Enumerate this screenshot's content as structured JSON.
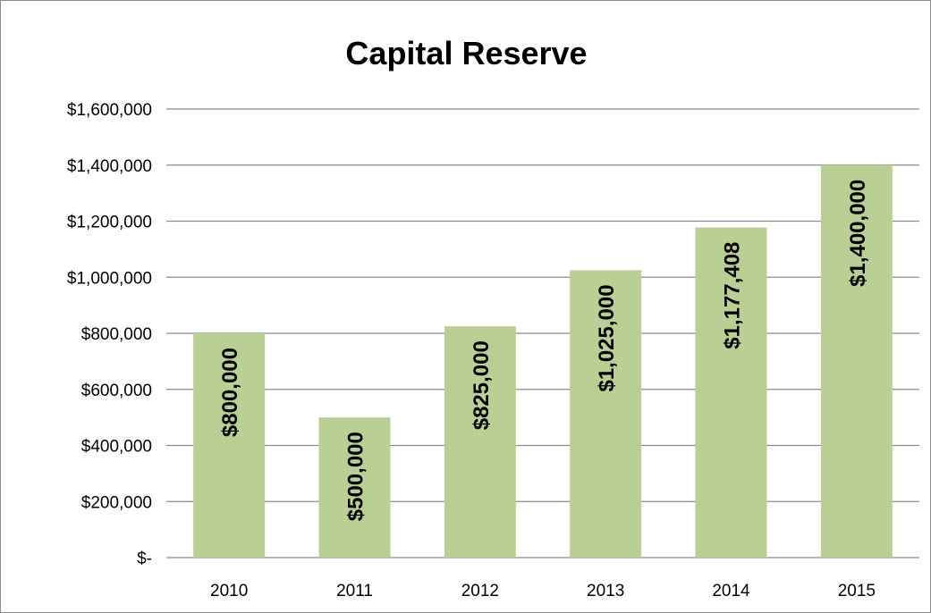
{
  "chart_data": {
    "type": "bar",
    "title": "Capital Reserve",
    "categories": [
      "2010",
      "2011",
      "2012",
      "2013",
      "2014",
      "2015"
    ],
    "values": [
      800000,
      500000,
      825000,
      1025000,
      1177408,
      1400000
    ],
    "data_labels": [
      "$800,000",
      "$500,000",
      "$825,000",
      "$1,025,000",
      "$1,177,408",
      "$1,400,000"
    ],
    "ylim": [
      0,
      1600000
    ],
    "y_ticks": [
      0,
      200000,
      400000,
      600000,
      800000,
      1000000,
      1200000,
      1400000,
      1600000
    ],
    "y_tick_labels": [
      "$-",
      "$200,000",
      "$400,000",
      "$600,000",
      "$800,000",
      "$1,000,000",
      "$1,200,000",
      "$1,400,000",
      "$1,600,000"
    ],
    "xlabel": "",
    "ylabel": "",
    "grid": true,
    "legend": "none",
    "bar_color": "#b9cf94",
    "gridline_color": "#8c8c8c"
  }
}
